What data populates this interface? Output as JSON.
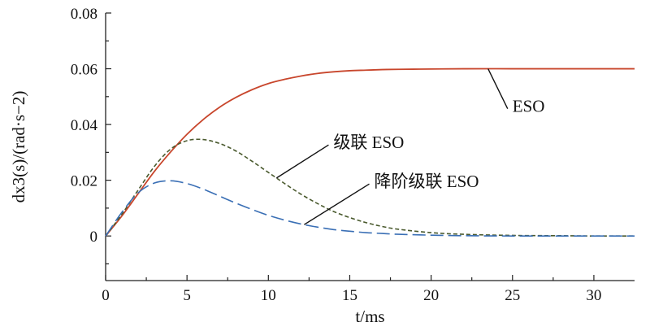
{
  "chart_data": {
    "type": "line",
    "title": "",
    "xlabel": "t/ms",
    "ylabel": "dx3(s)/(rad·s−2)",
    "xlim": [
      0,
      32.5
    ],
    "ylim": [
      -0.016,
      0.08
    ],
    "xticks": [
      "0",
      "5",
      "10",
      "15",
      "20",
      "25",
      "30"
    ],
    "yticks": [
      "0",
      "0.02",
      "0.04",
      "0.06",
      "0.08"
    ],
    "grid": false,
    "legend": "annotations",
    "series": [
      {
        "name": "ESO",
        "color": "#c8462c",
        "style": "solid",
        "x": [
          0,
          1,
          2,
          3,
          4,
          5,
          6,
          7,
          8,
          9,
          10,
          11,
          12,
          13,
          14,
          15,
          16,
          17,
          18,
          20,
          22,
          25,
          28,
          30,
          32.5
        ],
        "y": [
          0,
          0.0072,
          0.0152,
          0.0232,
          0.0302,
          0.0365,
          0.0418,
          0.0462,
          0.0497,
          0.0525,
          0.0547,
          0.0562,
          0.0574,
          0.0583,
          0.0589,
          0.0593,
          0.0595,
          0.0597,
          0.0598,
          0.0599,
          0.06,
          0.06,
          0.06,
          0.06,
          0.06
        ]
      },
      {
        "name": "级联 ESO",
        "color": "#4a5a2e",
        "style": "dashed",
        "x": [
          0,
          1,
          2,
          3,
          4,
          5,
          6,
          7,
          8,
          9,
          10,
          11,
          12,
          13,
          14,
          15,
          16,
          17,
          18,
          20,
          22,
          25,
          28,
          30,
          32.5
        ],
        "y": [
          0,
          0.0078,
          0.0165,
          0.025,
          0.0312,
          0.0342,
          0.0346,
          0.0332,
          0.0305,
          0.0268,
          0.0228,
          0.0188,
          0.015,
          0.0117,
          0.0088,
          0.0066,
          0.0048,
          0.0034,
          0.0024,
          0.0012,
          0.0006,
          0.0002,
          0.0001,
          0,
          0
        ]
      },
      {
        "name": "降阶级联 ESO",
        "color": "#3a6fb5",
        "style": "longdash",
        "x": [
          0,
          1,
          2,
          3,
          4,
          5,
          6,
          7,
          8,
          9,
          10,
          11,
          12,
          13,
          14,
          15,
          16,
          17,
          18,
          20,
          22,
          25,
          28,
          30,
          32.5
        ],
        "y": [
          0,
          0.0085,
          0.0155,
          0.019,
          0.0198,
          0.0188,
          0.0168,
          0.0143,
          0.0118,
          0.0095,
          0.0074,
          0.0057,
          0.0043,
          0.0032,
          0.0023,
          0.0017,
          0.0012,
          0.0009,
          0.0006,
          0.0003,
          0.0001,
          0,
          0,
          0,
          0
        ]
      }
    ],
    "annotations": [
      {
        "text": "ESO",
        "series": 0,
        "at_x": 23.5,
        "text_x": 25.0,
        "text_y": 0.0445
      },
      {
        "text": "级联 ESO",
        "series": 1,
        "at_x": 10.5,
        "text_x": 14.0,
        "text_y": 0.0315
      },
      {
        "text": "降阶级联 ESO",
        "series": 2,
        "at_x": 12.2,
        "text_x": 16.5,
        "text_y": 0.0175
      }
    ]
  }
}
